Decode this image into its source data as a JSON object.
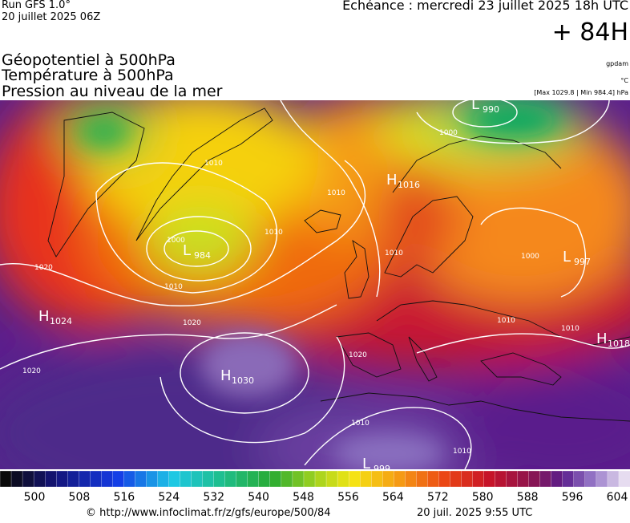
{
  "header": {
    "run": "Run GFS 1.0°",
    "run_date": "20 juillet 2025 06Z",
    "valid_time": "Echéance : mercredi 23 juillet 2025 18h UTC",
    "lead": "+ 84H"
  },
  "legend": {
    "lines": [
      "Géopotentiel à 500hPa",
      "Température à 500hPa",
      "Pression au niveau de la mer"
    ],
    "units": [
      "gpdam",
      "°C",
      "[Max 1029.8 | Min 984.4] hPa"
    ]
  },
  "pressure_centers": [
    {
      "type": "L",
      "value": 990
    },
    {
      "type": "H",
      "value": 1016
    },
    {
      "type": "L",
      "value": 984
    },
    {
      "type": "L",
      "value": 997
    },
    {
      "type": "H",
      "value": 1024
    },
    {
      "type": "H",
      "value": 1030
    },
    {
      "type": "H",
      "value": 1018
    },
    {
      "type": "L",
      "value": 999
    }
  ],
  "isobar_labels": [
    1000,
    1010,
    1010,
    1000,
    1010,
    1010,
    1020,
    1020,
    1020,
    1020,
    1010,
    1010,
    1010,
    1000,
    1010,
    1010
  ],
  "colorbar": {
    "ticks": [
      500,
      508,
      516,
      524,
      532,
      540,
      548,
      556,
      564,
      572,
      580,
      588,
      596,
      604
    ]
  },
  "footer": {
    "source": "© http://www.infoclimat.fr/z/gfs/europe/500/84",
    "generated": "20 juil. 2025  9:55 UTC"
  }
}
